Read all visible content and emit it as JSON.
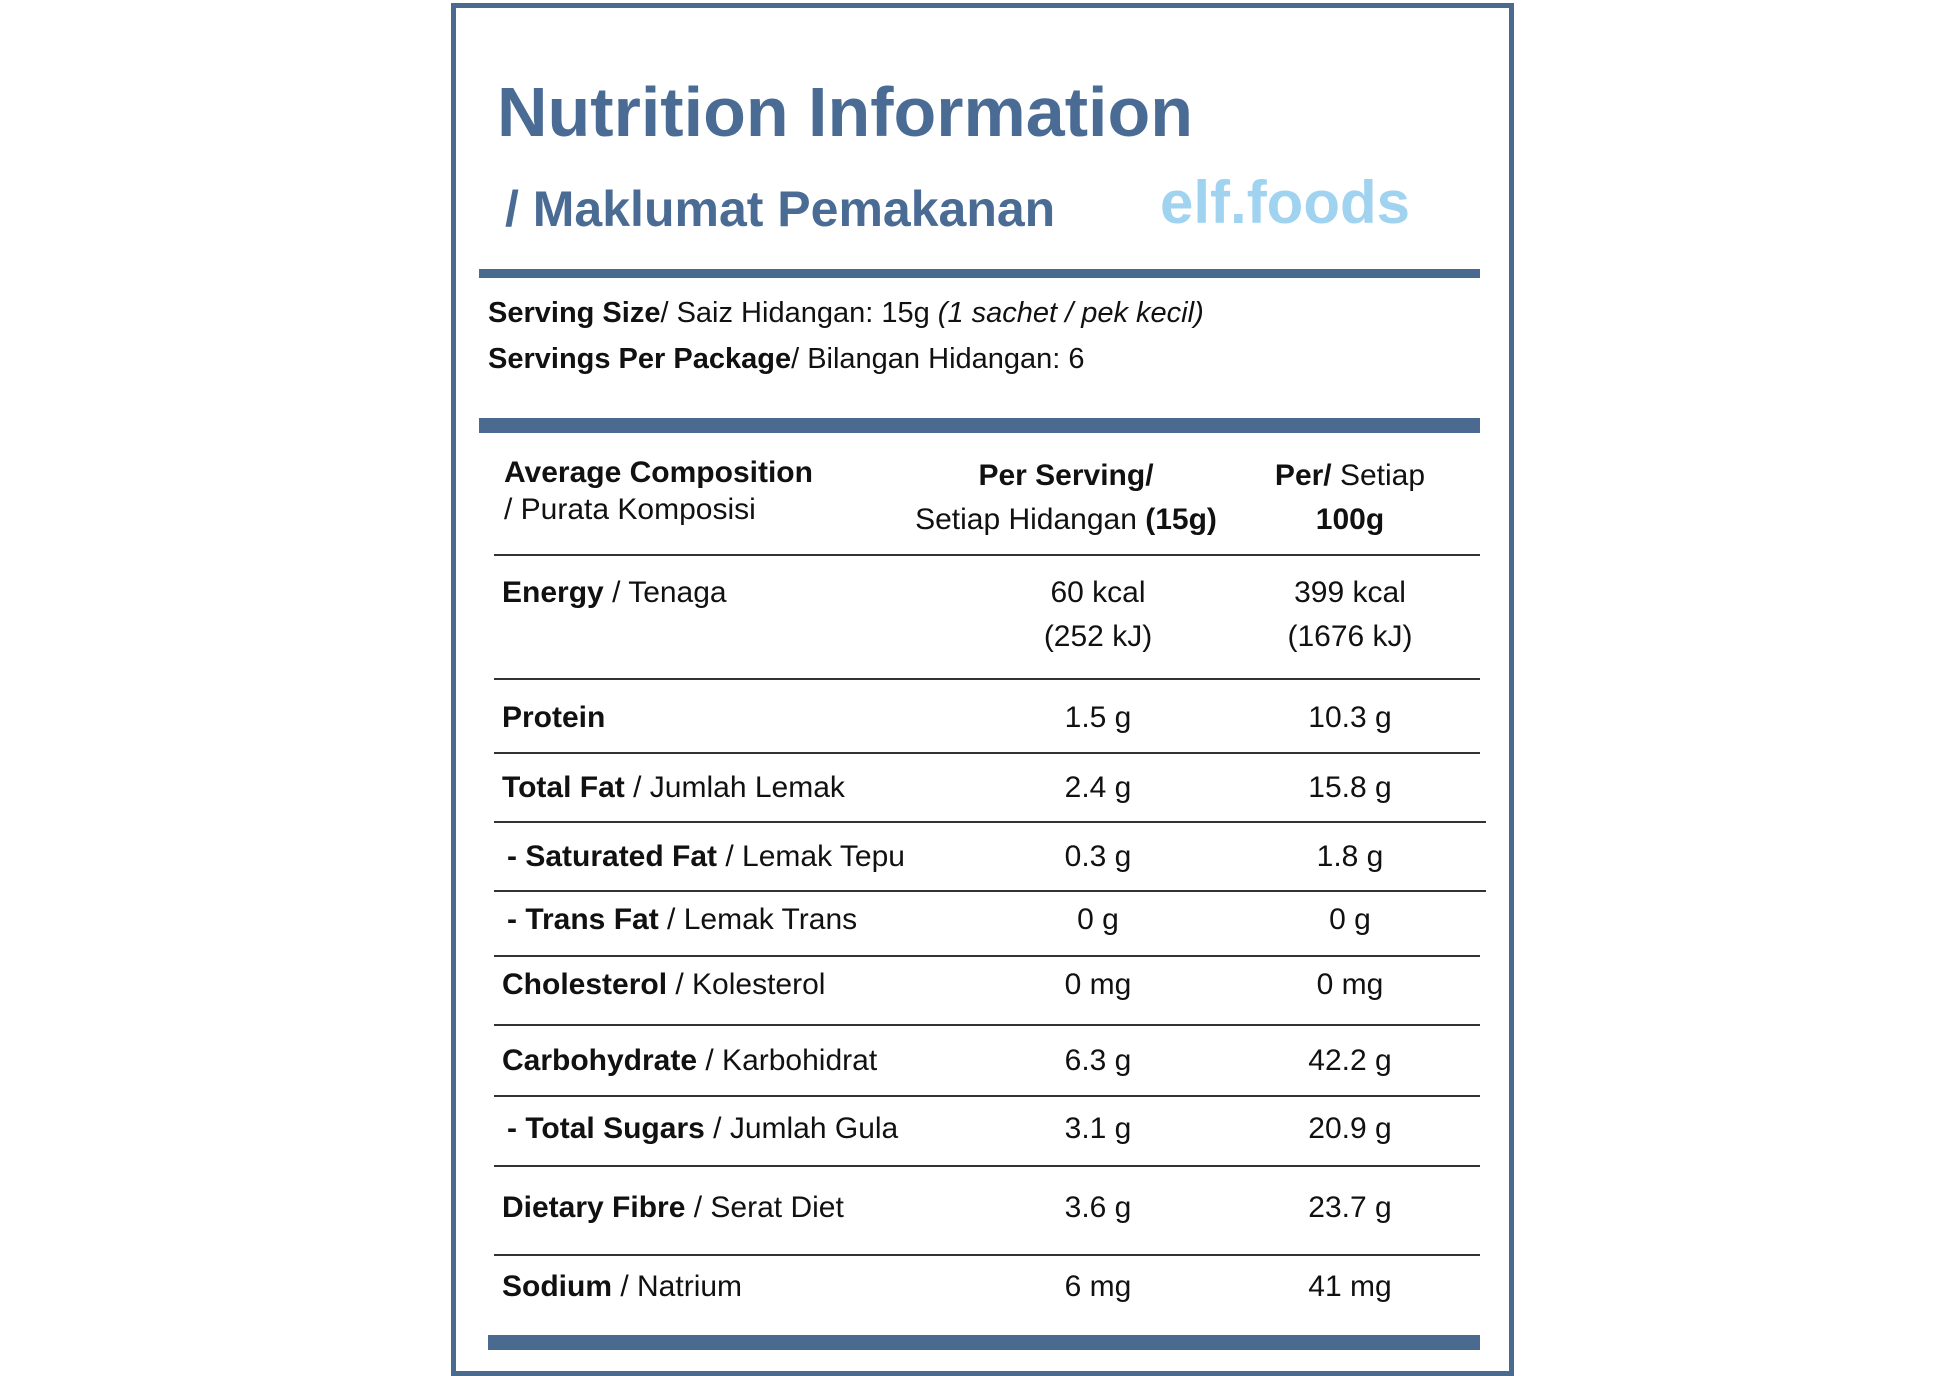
{
  "header": {
    "title": "Nutrition Information",
    "subtitle": "/ Maklumat Pemakanan",
    "brand": "elf.foods"
  },
  "serving": {
    "size_label": "Serving Size",
    "size_text": "/  Saiz Hidangan: 15g",
    "size_note": "(1 sachet / pek kecil)",
    "per_package_label": "Servings Per Package",
    "per_package_text": "/ Bilangan Hidangan: 6"
  },
  "table": {
    "header": {
      "composition": "Average Composition",
      "composition_local": "/ Purata Komposisi",
      "per_serving": "Per Serving/",
      "per_serving_local": "Setiap Hidangan",
      "per_serving_amount": "(15g)",
      "per_100g": "Per/",
      "per_100g_local": "Setiap",
      "per_100g_amount": "100g"
    },
    "rows": [
      {
        "name": "Energy",
        "local": "/ Tenaga",
        "per_serving": [
          "60 kcal",
          "(252 kJ)"
        ],
        "per_100g": [
          "399 kcal",
          "(1676 kJ)"
        ]
      },
      {
        "name": "Protein",
        "local": "",
        "per_serving": [
          "1.5 g"
        ],
        "per_100g": [
          "10.3 g"
        ]
      },
      {
        "name": "Total Fat",
        "local": "/ Jumlah Lemak",
        "per_serving": [
          "2.4 g"
        ],
        "per_100g": [
          "15.8 g"
        ]
      },
      {
        "name": "- Saturated Fat",
        "local": "/ Lemak Tepu",
        "per_serving": [
          "0.3 g"
        ],
        "per_100g": [
          "1.8 g"
        ]
      },
      {
        "name": "- Trans Fat",
        "local": "/ Lemak Trans",
        "per_serving": [
          "0 g"
        ],
        "per_100g": [
          "0 g"
        ]
      },
      {
        "name": "Cholesterol",
        "local": "/ Kolesterol",
        "per_serving": [
          "0 mg"
        ],
        "per_100g": [
          "0 mg"
        ]
      },
      {
        "name": "Carbohydrate",
        "local": "/ Karbohidrat",
        "per_serving": [
          "6.3 g"
        ],
        "per_100g": [
          "42.2 g"
        ]
      },
      {
        "name": "- Total Sugars",
        "local": "/ Jumlah Gula",
        "per_serving": [
          "3.1 g"
        ],
        "per_100g": [
          "20.9 g"
        ]
      },
      {
        "name": "Dietary Fibre",
        "local": "/ Serat Diet",
        "per_serving": [
          "3.6 g"
        ],
        "per_100g": [
          "23.7 g"
        ]
      },
      {
        "name": "Sodium",
        "local": "/ Natrium",
        "per_serving": [
          "6 mg"
        ],
        "per_100g": [
          "41 mg"
        ]
      }
    ]
  }
}
